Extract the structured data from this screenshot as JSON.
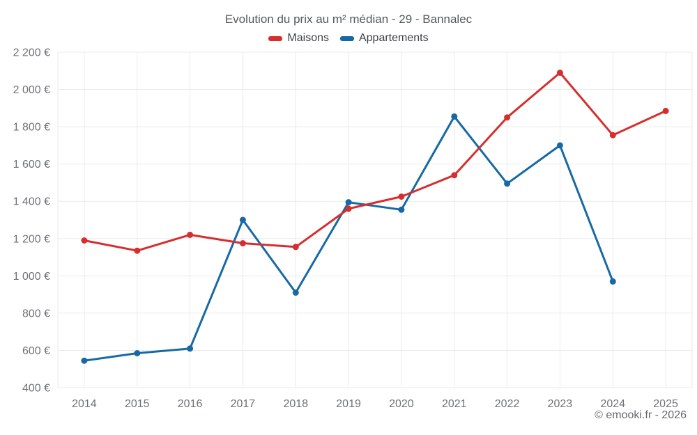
{
  "chart_data": {
    "type": "line",
    "title": "Evolution du prix au m² médian - 29 - Bannalec",
    "x": [
      "2014",
      "2015",
      "2016",
      "2017",
      "2018",
      "2019",
      "2020",
      "2021",
      "2022",
      "2023",
      "2024",
      "2025"
    ],
    "series": [
      {
        "name": "Maisons",
        "color": "#d62e2e",
        "values": [
          1190,
          1135,
          1220,
          1175,
          1155,
          1360,
          1425,
          1540,
          1850,
          2090,
          1755,
          1885
        ]
      },
      {
        "name": "Appartements",
        "color": "#1769a5",
        "values": [
          545,
          585,
          610,
          1300,
          910,
          1395,
          1355,
          1855,
          1495,
          1700,
          970,
          null
        ]
      }
    ],
    "ylim": [
      400,
      2200
    ],
    "ytick_step": 200,
    "ytick_labels": [
      "400 €",
      "600 €",
      "800 €",
      "1 000 €",
      "1 200 €",
      "1 400 €",
      "1 600 €",
      "1 800 €",
      "2 000 €",
      "2 200 €"
    ],
    "grid": true,
    "legend_position": "top",
    "colors": {
      "grid": "#ebebeb",
      "tick_text": "#6f7275",
      "marker_radius": 4.5,
      "line_width": 3
    }
  },
  "footer": {
    "watermark": "© emooki.fr - 2026"
  }
}
